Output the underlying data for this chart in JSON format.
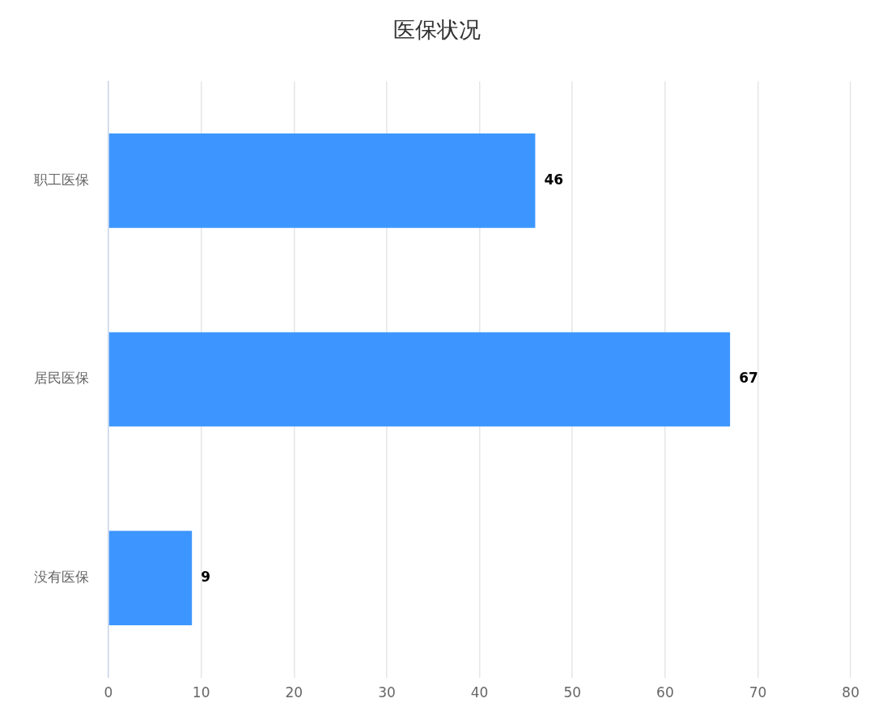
{
  "chart_data": {
    "type": "bar",
    "orientation": "horizontal",
    "title": "医保状况",
    "categories": [
      "职工医保",
      "居民医保",
      "没有医保"
    ],
    "values": [
      46,
      67,
      9
    ],
    "color": "#3d96ff",
    "xlim": [
      0,
      80
    ],
    "xticks": [
      0,
      10,
      20,
      30,
      40,
      50,
      60,
      70,
      80
    ],
    "grid": "x",
    "data_labels": true,
    "legend": false
  }
}
